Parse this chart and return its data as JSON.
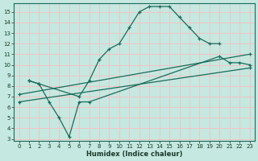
{
  "xlabel": "Humidex (Indice chaleur)",
  "xlim": [
    -0.5,
    23.5
  ],
  "ylim": [
    2.8,
    15.8
  ],
  "yticks": [
    3,
    4,
    5,
    6,
    7,
    8,
    9,
    10,
    11,
    12,
    13,
    14,
    15
  ],
  "xticks": [
    0,
    1,
    2,
    3,
    4,
    5,
    6,
    7,
    8,
    9,
    10,
    11,
    12,
    13,
    14,
    15,
    16,
    17,
    18,
    19,
    20,
    21,
    22,
    23
  ],
  "bg_color": "#c5e8e0",
  "grid_color": "#f5bfbf",
  "line_color": "#1a6b5a",
  "lines": [
    {
      "x": [
        1,
        2,
        6,
        7,
        8,
        9,
        10,
        11,
        12,
        13,
        14,
        15,
        16,
        17,
        18,
        19,
        20
      ],
      "y": [
        8.5,
        8.2,
        7.0,
        8.5,
        10.5,
        11.5,
        12.0,
        13.5,
        15.0,
        15.5,
        15.5,
        15.5,
        14.5,
        13.5,
        12.5,
        12.0,
        12.0
      ]
    },
    {
      "x": [
        1,
        2,
        3,
        4,
        5,
        6,
        7,
        20,
        21,
        22,
        23
      ],
      "y": [
        8.5,
        8.2,
        6.5,
        5.0,
        3.2,
        6.5,
        6.5,
        10.8,
        10.2,
        10.2,
        10.0
      ]
    },
    {
      "x": [
        0,
        23
      ],
      "y": [
        7.2,
        11.0
      ]
    },
    {
      "x": [
        0,
        23
      ],
      "y": [
        6.5,
        9.7
      ]
    }
  ]
}
